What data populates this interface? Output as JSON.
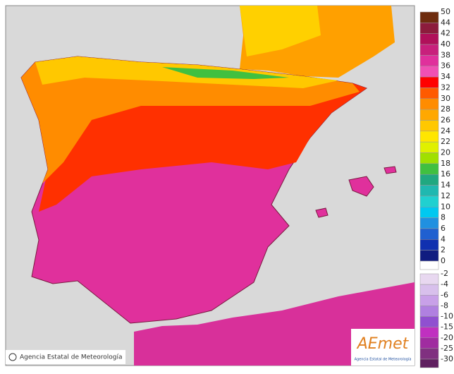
{
  "legend": {
    "values": [
      50,
      44,
      42,
      40,
      38,
      36,
      34,
      32,
      30,
      28,
      26,
      24,
      22,
      20,
      18,
      16,
      14,
      12,
      10,
      8,
      6,
      4,
      2,
      0,
      -2,
      -4,
      -6,
      -8,
      -10,
      -15,
      -20,
      -25,
      -30
    ],
    "colors": [
      "#6e2c0e",
      "#8c1c3c",
      "#b0105a",
      "#c8207c",
      "#e0309c",
      "#f050b4",
      "#ff0000",
      "#ff5a00",
      "#ff8c00",
      "#ffa800",
      "#ffc800",
      "#ffe600",
      "#e0f000",
      "#a0e000",
      "#40c040",
      "#20a880",
      "#20b8b0",
      "#20d0d0",
      "#00c8f0",
      "#2090e0",
      "#2060d0",
      "#1030b0",
      "#101c80",
      "#ffffff",
      "#e8d8f0",
      "#d8c0ec",
      "#c8a0e8",
      "#b080e0",
      "#9050d0",
      "#c030c0",
      "#a02ca0",
      "#803080",
      "#602060"
    ]
  },
  "copyright": "Agencia Estatal de Meteorología",
  "logo": {
    "brand": "AEmet",
    "caption": "Agencia Estatal de Meteorología"
  }
}
